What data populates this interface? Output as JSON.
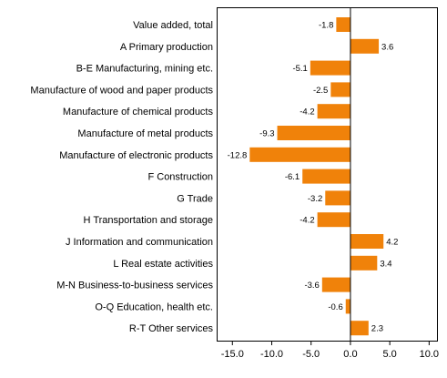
{
  "chart_data": {
    "type": "bar",
    "orientation": "horizontal",
    "categories": [
      "Value added, total",
      "A Primary production",
      "B-E Manufacturing, mining etc.",
      "Manufacture of wood and paper products",
      "Manufacture of chemical products",
      "Manufacture of metal products",
      "Manufacture of electronic products",
      "F Construction",
      "G Trade",
      "H Transportation and storage",
      "J Information and communication",
      "L Real estate activities",
      "M-N Business-to-business services",
      "O-Q Education, health etc.",
      "R-T Other services"
    ],
    "values": [
      -1.8,
      3.6,
      -5.1,
      -2.5,
      -4.2,
      -9.3,
      -12.8,
      -6.1,
      -3.2,
      -4.2,
      4.2,
      3.4,
      -3.6,
      -0.6,
      2.3
    ],
    "value_labels": [
      "-1.8",
      "3.6",
      "-5.1",
      "-2.5",
      "-4.2",
      "-9.3",
      "-12.8",
      "-6.1",
      "-3.2",
      "-4.2",
      "4.2",
      "3.4",
      "-3.6",
      "-0.6",
      "2.3"
    ],
    "xlim": [
      -17,
      11
    ],
    "xticks": [
      -15,
      -10,
      -5,
      0,
      5,
      10
    ],
    "xtick_labels": [
      "-15.0",
      "-10.0",
      "-5.0",
      "0.0",
      "5.0",
      "10.0"
    ],
    "title": "",
    "xlabel": "",
    "ylabel": "",
    "grid": false,
    "legend": "none",
    "bar_color": "#F0820A",
    "frame_color": "#000000"
  }
}
